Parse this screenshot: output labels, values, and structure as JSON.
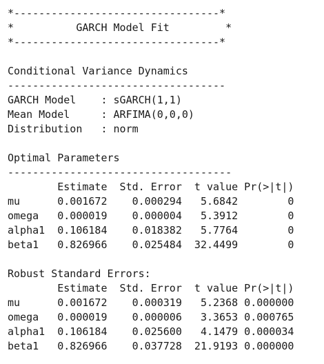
{
  "header": {
    "border_top": "*---------------------------------*",
    "title_line": "*          GARCH Model Fit         *",
    "border_bottom": "*---------------------------------*"
  },
  "conditional_variance": {
    "heading": "Conditional Variance Dynamics",
    "rule": "-----------------------------------",
    "garch_model": "GARCH Model    : sGARCH(1,1)",
    "mean_model": "Mean Model     : ARFIMA(0,0,0)",
    "distribution": "Distribution   : norm"
  },
  "optimal_parameters": {
    "heading": "Optimal Parameters",
    "rule": "------------------------------------",
    "columns": "        Estimate  Std. Error  t value Pr(>|t|)",
    "rows": [
      "mu      0.001672    0.000294   5.6842        0",
      "omega   0.000019    0.000004   5.3912        0",
      "alpha1  0.106184    0.018382   5.7764        0",
      "beta1   0.826966    0.025484  32.4499        0"
    ]
  },
  "robust_errors": {
    "heading": "Robust Standard Errors:",
    "columns": "        Estimate  Std. Error  t value Pr(>|t|)",
    "rows": [
      "mu      0.001672    0.000319   5.2368 0.000000",
      "omega   0.000019    0.000006   3.3653 0.000765",
      "alpha1  0.106184    0.025600   4.1479 0.000034",
      "beta1   0.826966    0.037728  21.9193 0.000000"
    ]
  }
}
